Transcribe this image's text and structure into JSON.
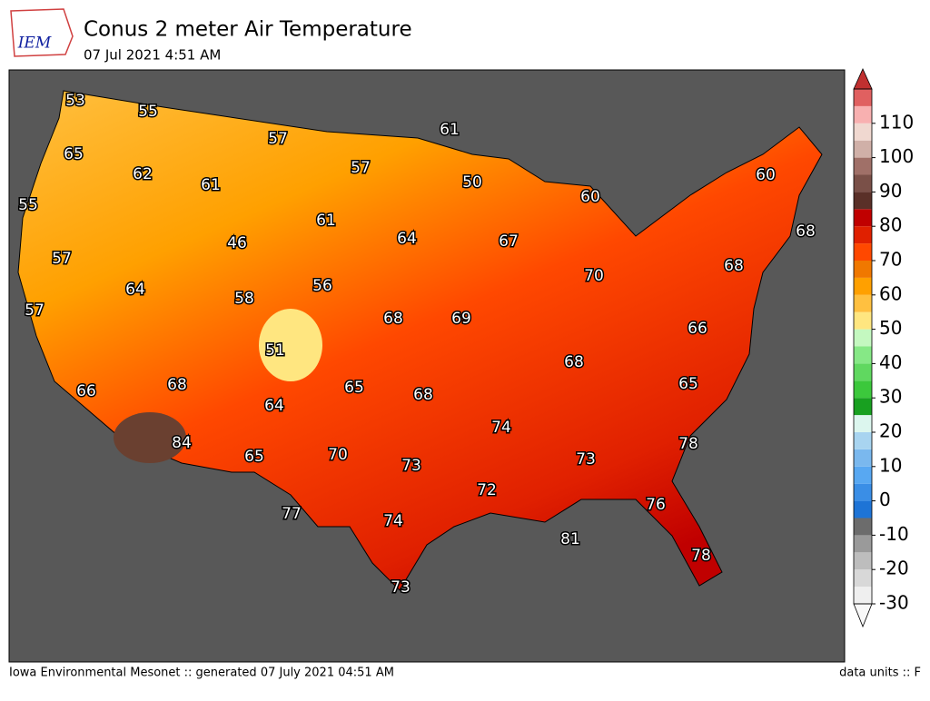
{
  "header": {
    "logo": "IEM",
    "title": "Conus 2 meter Air Temperature",
    "subtitle": "07 Jul 2021 4:51 AM"
  },
  "map": {
    "labels": [
      53,
      55,
      57,
      61,
      65,
      62,
      61,
      57,
      50,
      60,
      60,
      55,
      61,
      64,
      67,
      68,
      46,
      57,
      64,
      56,
      58,
      70,
      68,
      57,
      68,
      69,
      66,
      51,
      68,
      66,
      68,
      65,
      68,
      65,
      64,
      74,
      84,
      73,
      78,
      65,
      70,
      73,
      72,
      76,
      77,
      74,
      81,
      78,
      73
    ]
  },
  "colorbar": {
    "ticks": [
      -30,
      -20,
      -10,
      0,
      10,
      20,
      30,
      40,
      50,
      60,
      70,
      80,
      90,
      100,
      110
    ],
    "levels": [
      -30,
      -25,
      -20,
      -15,
      -10,
      -5,
      0,
      5,
      10,
      15,
      20,
      25,
      30,
      35,
      40,
      45,
      50,
      55,
      60,
      65,
      70,
      75,
      80,
      85,
      90,
      95,
      100,
      105,
      110,
      115,
      120
    ],
    "colors": [
      "#efefef",
      "#d8d8d8",
      "#bdbdbd",
      "#9a9a9a",
      "#6c6c6c",
      "#1e74d6",
      "#3a8ee6",
      "#58a8f2",
      "#7ab8ee",
      "#a8d4f0",
      "#dcf6ee",
      "#18a020",
      "#3cc83c",
      "#60d860",
      "#86e886",
      "#c4f8c0",
      "#ffe680",
      "#ffc040",
      "#ffa000",
      "#f07800",
      "#ff4800",
      "#e02000",
      "#c00000",
      "#5a3028",
      "#7a5048",
      "#a07068",
      "#d0b0a8",
      "#f0d8d0",
      "#f8b0b0",
      "#e06060"
    ],
    "under": "#f8f8f8",
    "over": "#c03030"
  },
  "footer": {
    "left": "Iowa Environmental Mesonet :: generated 07 July 2021 04:51 AM",
    "right": "data units :: F"
  }
}
